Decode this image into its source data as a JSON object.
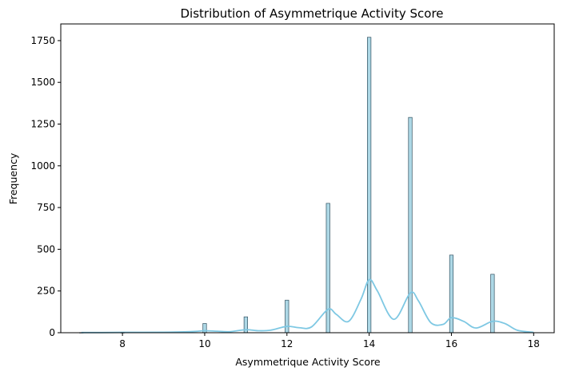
{
  "chart_data": {
    "type": "bar",
    "subtype": "histogram-with-kde",
    "title": "Distribution of Asymmetrique Activity Score",
    "xlabel": "Asymmetrique Activity Score",
    "ylabel": "Frequency",
    "xlim": [
      6.5,
      18.5
    ],
    "ylim": [
      0,
      1850
    ],
    "x_ticks": [
      8,
      10,
      12,
      14,
      16,
      18
    ],
    "y_ticks": [
      0,
      250,
      500,
      750,
      1000,
      1250,
      1500,
      1750
    ],
    "grid": false,
    "colors": {
      "bar_fill": "#add8e6",
      "bar_edge": "#2f4f5f",
      "kde_line": "#7ec8e3"
    },
    "bins": [
      {
        "x": 7,
        "value": 1
      },
      {
        "x": 8,
        "value": 1
      },
      {
        "x": 9,
        "value": 4
      },
      {
        "x": 10,
        "value": 55
      },
      {
        "x": 11,
        "value": 95
      },
      {
        "x": 12,
        "value": 195
      },
      {
        "x": 13,
        "value": 775
      },
      {
        "x": 14,
        "value": 1770
      },
      {
        "x": 15,
        "value": 1290
      },
      {
        "x": 16,
        "value": 465
      },
      {
        "x": 17,
        "value": 350
      }
    ],
    "kde": {
      "x": [
        7,
        7.5,
        8,
        8.5,
        9,
        9.5,
        9.8,
        10,
        10.3,
        10.6,
        11,
        11.3,
        11.6,
        12,
        12.3,
        12.6,
        13,
        13.2,
        13.5,
        13.8,
        14,
        14.2,
        14.6,
        15,
        15.2,
        15.5,
        15.8,
        16,
        16.3,
        16.6,
        17,
        17.3,
        17.6,
        18
      ],
      "y": [
        1,
        1,
        2,
        2,
        3,
        5,
        8,
        12,
        9,
        6,
        18,
        12,
        15,
        38,
        30,
        35,
        140,
        110,
        68,
        200,
        318,
        250,
        80,
        238,
        190,
        60,
        50,
        90,
        68,
        28,
        68,
        55,
        15,
        2
      ]
    }
  }
}
